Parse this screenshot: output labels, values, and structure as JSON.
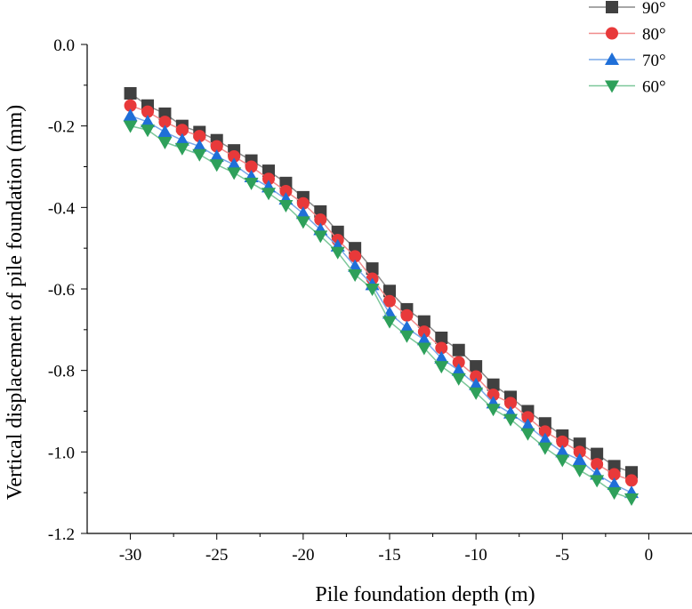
{
  "chart_data": {
    "type": "line",
    "title": "",
    "xlabel": "Pile foundation depth (m)",
    "ylabel": "Vertical displacement of pile foundation (mm)",
    "xlim": [
      -32.5,
      2.5
    ],
    "ylim": [
      -1.2,
      0.0
    ],
    "xticks": [
      -30,
      -25,
      -20,
      -15,
      -10,
      -5,
      0
    ],
    "xtick_labels": [
      "-30",
      "-25",
      "-20",
      "-15",
      "-10",
      "-5",
      "0"
    ],
    "yticks": [
      0.0,
      -0.2,
      -0.4,
      -0.6,
      -0.8,
      -1.0,
      -1.2
    ],
    "ytick_labels": [
      "0.0",
      "-0.2",
      "-0.4",
      "-0.6",
      "-0.8",
      "-1.0",
      "-1.2"
    ],
    "grid": false,
    "legend_position": "top-right",
    "x": [
      -30,
      -29,
      -28,
      -27,
      -26,
      -25,
      -24,
      -23,
      -22,
      -21,
      -20,
      -19,
      -18,
      -17,
      -16,
      -15,
      -14,
      -13,
      -12,
      -11,
      -10,
      -9,
      -8,
      -7,
      -6,
      -5,
      -4,
      -3,
      -2,
      -1
    ],
    "series": [
      {
        "name": "90°",
        "marker": "square",
        "color": "#404040",
        "line_color": "#8a8a8a",
        "values": [
          -0.12,
          -0.15,
          -0.17,
          -0.2,
          -0.215,
          -0.235,
          -0.26,
          -0.285,
          -0.31,
          -0.34,
          -0.375,
          -0.41,
          -0.46,
          -0.5,
          -0.55,
          -0.605,
          -0.65,
          -0.68,
          -0.72,
          -0.75,
          -0.79,
          -0.835,
          -0.865,
          -0.9,
          -0.93,
          -0.96,
          -0.98,
          -1.005,
          -1.035,
          -1.05
        ]
      },
      {
        "name": "80°",
        "marker": "circle",
        "color": "#e8393a",
        "line_color": "#f08a8a",
        "values": [
          -0.15,
          -0.165,
          -0.19,
          -0.21,
          -0.225,
          -0.25,
          -0.275,
          -0.3,
          -0.33,
          -0.36,
          -0.39,
          -0.43,
          -0.48,
          -0.52,
          -0.575,
          -0.63,
          -0.665,
          -0.705,
          -0.745,
          -0.78,
          -0.815,
          -0.86,
          -0.88,
          -0.915,
          -0.95,
          -0.975,
          -1.0,
          -1.03,
          -1.055,
          -1.07
        ]
      },
      {
        "name": "70°",
        "marker": "triangle-up",
        "color": "#1f6fd8",
        "line_color": "#7aa8e8",
        "values": [
          -0.175,
          -0.19,
          -0.215,
          -0.235,
          -0.25,
          -0.275,
          -0.295,
          -0.325,
          -0.35,
          -0.38,
          -0.415,
          -0.455,
          -0.495,
          -0.545,
          -0.59,
          -0.66,
          -0.695,
          -0.725,
          -0.77,
          -0.8,
          -0.835,
          -0.88,
          -0.905,
          -0.935,
          -0.97,
          -1.0,
          -1.02,
          -1.055,
          -1.08,
          -1.1
        ]
      },
      {
        "name": "60°",
        "marker": "triangle-down",
        "color": "#2ea05a",
        "line_color": "#7cc79a",
        "values": [
          -0.2,
          -0.21,
          -0.24,
          -0.255,
          -0.27,
          -0.295,
          -0.315,
          -0.34,
          -0.365,
          -0.395,
          -0.435,
          -0.47,
          -0.51,
          -0.565,
          -0.6,
          -0.68,
          -0.715,
          -0.745,
          -0.79,
          -0.82,
          -0.855,
          -0.895,
          -0.92,
          -0.955,
          -0.99,
          -1.02,
          -1.045,
          -1.07,
          -1.1,
          -1.115
        ]
      }
    ]
  }
}
